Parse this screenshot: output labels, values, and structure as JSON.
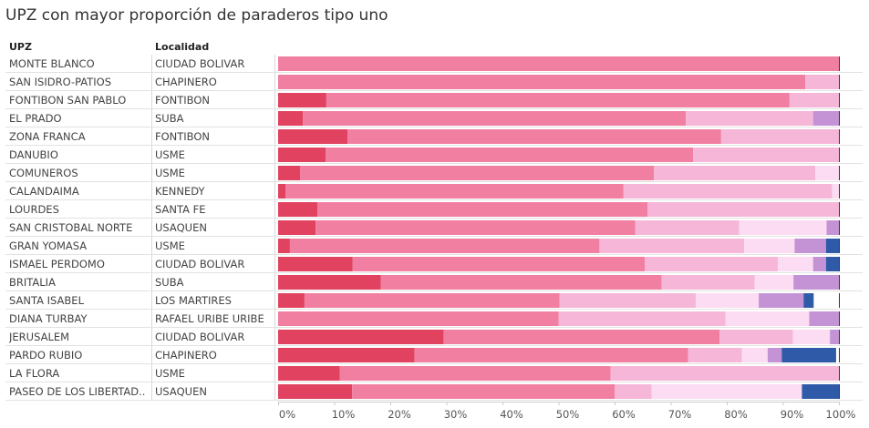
{
  "title": "UPZ con mayor proporción de paraderos tipo uno",
  "headers": {
    "upz": "UPZ",
    "localidad": "Localidad"
  },
  "colors": [
    "#e0425f",
    "#f17fa2",
    "#f6b6d8",
    "#fcdcf2",
    "#c393d6",
    "#2f5aa8"
  ],
  "chart_data": {
    "type": "bar",
    "stacked": "100%",
    "orientation": "horizontal",
    "categories": [
      {
        "upz": "MONTE BLANCO",
        "localidad": "CIUDAD BOLIVAR"
      },
      {
        "upz": "SAN ISIDRO-PATIOS",
        "localidad": "CHAPINERO"
      },
      {
        "upz": "FONTIBON SAN PABLO",
        "localidad": "FONTIBON"
      },
      {
        "upz": "EL PRADO",
        "localidad": "SUBA"
      },
      {
        "upz": "ZONA FRANCA",
        "localidad": "FONTIBON"
      },
      {
        "upz": "DANUBIO",
        "localidad": "USME"
      },
      {
        "upz": "COMUNEROS",
        "localidad": "USME"
      },
      {
        "upz": "CALANDAIMA",
        "localidad": "KENNEDY"
      },
      {
        "upz": "LOURDES",
        "localidad": "SANTA FE"
      },
      {
        "upz": "SAN CRISTOBAL NORTE",
        "localidad": "USAQUEN"
      },
      {
        "upz": "GRAN YOMASA",
        "localidad": "USME"
      },
      {
        "upz": "ISMAEL PERDOMO",
        "localidad": "CIUDAD BOLIVAR"
      },
      {
        "upz": "BRITALIA",
        "localidad": "SUBA"
      },
      {
        "upz": "SANTA ISABEL",
        "localidad": "LOS MARTIRES"
      },
      {
        "upz": "DIANA TURBAY",
        "localidad": "RAFAEL URIBE URIBE"
      },
      {
        "upz": "JERUSALEM",
        "localidad": "CIUDAD BOLIVAR"
      },
      {
        "upz": "PARDO RUBIO",
        "localidad": "CHAPINERO"
      },
      {
        "upz": "LA FLORA",
        "localidad": "USME"
      },
      {
        "upz": "PASEO DE LOS LIBERTAD..",
        "localidad": "USAQUEN"
      }
    ],
    "series_values": [
      [
        0,
        100,
        0,
        0,
        0,
        0
      ],
      [
        0,
        94,
        6,
        0,
        0,
        0
      ],
      [
        8.6,
        82.6,
        8.8,
        0,
        0,
        0
      ],
      [
        4.4,
        68.3,
        22.7,
        0,
        4.6,
        0
      ],
      [
        12.4,
        66.6,
        21.0,
        0,
        0,
        0
      ],
      [
        8.5,
        65.5,
        26.0,
        0,
        0,
        0
      ],
      [
        3.9,
        63.1,
        28.8,
        4.2,
        0,
        0
      ],
      [
        1.3,
        60.3,
        37.2,
        1.2,
        0,
        0
      ],
      [
        7.0,
        58.9,
        34.1,
        0,
        0,
        0
      ],
      [
        6.7,
        57.0,
        18.5,
        15.6,
        2.2,
        0
      ],
      [
        2.1,
        55.2,
        25.8,
        9.0,
        5.6,
        2.3
      ],
      [
        13.3,
        52.1,
        23.7,
        6.3,
        2.3,
        2.3
      ],
      [
        18.3,
        50.1,
        16.6,
        6.9,
        8.1,
        0
      ],
      [
        4.7,
        45.5,
        24.3,
        11.2,
        8.0,
        1.8
      ],
      [
        0,
        50.0,
        29.8,
        14.9,
        5.3,
        0
      ],
      [
        29.5,
        49.2,
        13.1,
        6.6,
        1.6,
        0
      ],
      [
        24.3,
        48.8,
        9.6,
        4.6,
        2.5,
        9.7
      ],
      [
        11.0,
        48.3,
        40.7,
        0,
        0,
        0
      ],
      [
        13.2,
        46.8,
        6.6,
        26.8,
        0,
        6.6
      ]
    ],
    "x_ticks": [
      "0%",
      "10%",
      "20%",
      "30%",
      "40%",
      "50%",
      "60%",
      "70%",
      "80%",
      "90%",
      "100%"
    ],
    "xlim": [
      0,
      100
    ],
    "grid": false,
    "legend": "none"
  }
}
